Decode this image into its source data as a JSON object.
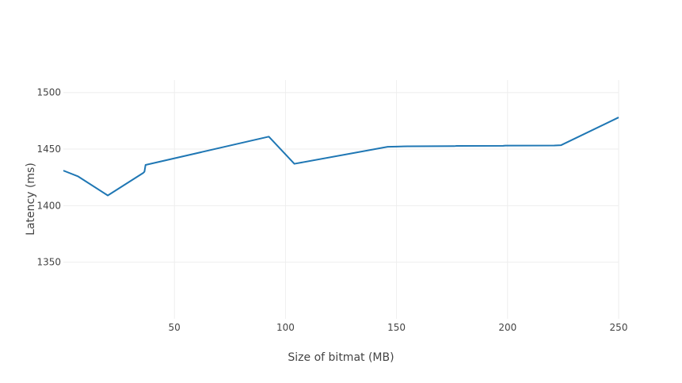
{
  "chart_data": {
    "type": "line",
    "xlabel": "Size of bitmat (MB)",
    "ylabel": "Latency (ms)",
    "xlim": [
      0,
      250
    ],
    "ylim": [
      1300,
      1511
    ],
    "x_ticks": [
      50,
      100,
      150,
      200,
      250
    ],
    "y_ticks": [
      1350,
      1400,
      1450,
      1500
    ],
    "grid": true,
    "colors": {
      "line": "#1f77b4",
      "grid": "#eeeeee",
      "text": "#444444"
    },
    "series": [
      {
        "x": [
          0,
          6.5,
          20,
          36,
          36.5,
          37,
          92.5,
          104,
          146,
          150,
          155,
          176,
          177,
          198,
          199,
          221,
          224,
          250
        ],
        "y": [
          1431,
          1426,
          1409,
          1429,
          1430,
          1436,
          1461,
          1437,
          1452,
          1452.2,
          1452.5,
          1452.6,
          1452.8,
          1452.9,
          1453.1,
          1453.2,
          1453.4,
          1478
        ]
      }
    ]
  }
}
